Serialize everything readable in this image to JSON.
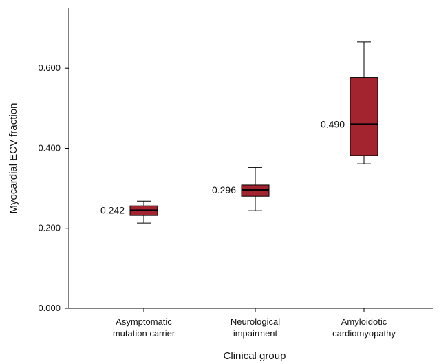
{
  "chart_data": {
    "type": "box",
    "title": "",
    "xlabel": "Clinical group",
    "ylabel": "Myocardial ECV fraction",
    "ylim": [
      0,
      0.75
    ],
    "yticks": [
      "0.000",
      "0.200",
      "0.400",
      "0.600"
    ],
    "ytick_values": [
      0,
      0.2,
      0.4,
      0.6
    ],
    "box_color": "#a3232f",
    "grid": false,
    "legend": "none",
    "categories": [
      [
        "Asymptomatic",
        "mutation carrier"
      ],
      [
        "Neurological",
        "impairment"
      ],
      [
        "Amyloidotic",
        "cardiomyopathy"
      ]
    ],
    "boxes": [
      {
        "min": 0.213,
        "q1": 0.232,
        "median": 0.245,
        "q3": 0.256,
        "max": 0.268,
        "label": "0.242"
      },
      {
        "min": 0.244,
        "q1": 0.28,
        "median": 0.296,
        "q3": 0.308,
        "max": 0.352,
        "label": "0.296"
      },
      {
        "min": 0.361,
        "q1": 0.382,
        "median": 0.46,
        "q3": 0.577,
        "max": 0.666,
        "label": "0.490"
      }
    ]
  }
}
